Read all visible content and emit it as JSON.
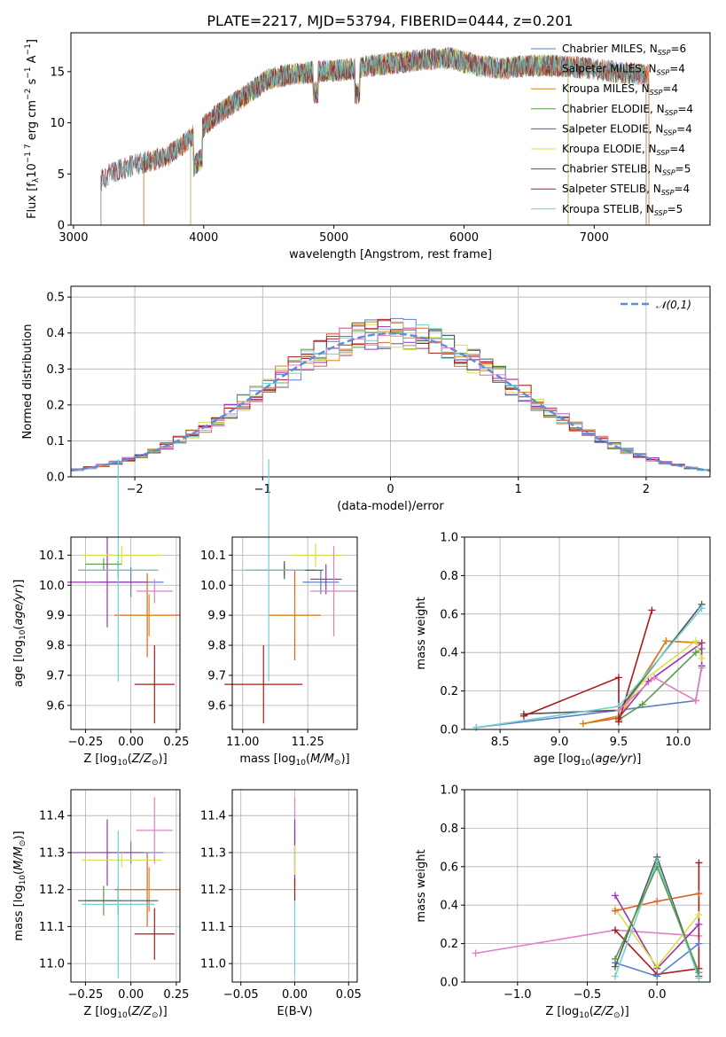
{
  "figure": {
    "title": "PLATE=2217, MJD=53794, FIBERID=0444, z=0.201"
  },
  "colors": {
    "Chabrier MILES": "#5b7fc9",
    "Salpeter MILES": "#e06020",
    "Kroupa MILES": "#d4861a",
    "Chabrier ELODIE": "#5a9a4a",
    "Salpeter ELODIE": "#9b30b0",
    "Kroupa ELODIE": "#d6e04a",
    "Chabrier STELIB": "#555555",
    "Salpeter STELIB": "#aa1a1a",
    "Kroupa STELIB": "#70cfd6",
    "extra": "#e080c0",
    "gaussian": "#5b8fd6"
  },
  "chart_data": [
    {
      "type": "line",
      "xlabel": "wavelength [Angstrom, rest frame]",
      "ylabel": "Flux [fλ10⁻¹⁷ erg cm⁻² s⁻¹ A⁻¹]",
      "xlim": [
        2980,
        7890
      ],
      "ylim": [
        0,
        18.8
      ],
      "xticks": [
        3000,
        4000,
        5000,
        6000,
        7000
      ],
      "yticks": [
        0,
        5,
        10,
        15
      ],
      "legend_position": "right",
      "legend": [
        "Chabrier MILES, N_SSP=6",
        "Salpeter MILES, N_SSP=4",
        "Kroupa MILES, N_SSP=4",
        "Chabrier ELODIE, N_SSP=4",
        "Salpeter ELODIE, N_SSP=4",
        "Kroupa ELODIE, N_SSP=4",
        "Chabrier STELIB, N_SSP=5",
        "Salpeter STELIB, N_SSP=4",
        "Kroupa STELIB, N_SSP=5"
      ],
      "legend_text": [
        {
          "pre": "Chabrier MILES, N",
          "sub": "SSP",
          "post": "=6"
        },
        {
          "pre": "Salpeter MILES, N",
          "sub": "SSP",
          "post": "=4"
        },
        {
          "pre": "Kroupa MILES, N",
          "sub": "SSP",
          "post": "=4"
        },
        {
          "pre": "Chabrier ELODIE, N",
          "sub": "SSP",
          "post": "=4"
        },
        {
          "pre": "Salpeter ELODIE, N",
          "sub": "SSP",
          "post": "=4"
        },
        {
          "pre": "Kroupa ELODIE, N",
          "sub": "SSP",
          "post": "=4"
        },
        {
          "pre": "Chabrier STELIB, N",
          "sub": "SSP",
          "post": "=5"
        },
        {
          "pre": "Salpeter STELIB, N",
          "sub": "SSP",
          "post": "=4"
        },
        {
          "pre": "Kroupa STELIB, N",
          "sub": "SSP",
          "post": "=5"
        }
      ],
      "spectrum_envelope": {
        "x": [
          3210,
          3300,
          3500,
          3700,
          3900,
          4100,
          4300,
          4500,
          4700,
          4900,
          5100,
          5300,
          5500,
          5700,
          5900,
          6100,
          6300,
          6500,
          6700,
          6900,
          7100,
          7300,
          7450
        ],
        "y": [
          4.3,
          5.2,
          6.0,
          6.6,
          8.5,
          10.8,
          12.5,
          14.3,
          14.8,
          15.0,
          15.2,
          15.6,
          15.9,
          16.2,
          16.3,
          15.6,
          15.3,
          15.6,
          15.6,
          15.4,
          15.1,
          14.8,
          14.6
        ]
      },
      "model_edges": {
        "Chabrier MILES": [
          3540,
          7420
        ],
        "Salpeter MILES": [
          3540,
          7420
        ],
        "Kroupa MILES": [
          3540,
          7420
        ],
        "Chabrier ELODIE": [
          3900,
          6800
        ],
        "Salpeter ELODIE": [
          3900,
          6800
        ],
        "Kroupa ELODIE": [
          3900,
          6800
        ],
        "Chabrier STELIB": [
          3210,
          7400
        ],
        "Salpeter STELIB": [
          3210,
          7400
        ],
        "Kroupa STELIB": [
          3210,
          7400
        ]
      }
    },
    {
      "type": "step",
      "xlabel": "(data-model)/error",
      "ylabel": "Normed distribution",
      "xlim": [
        -2.5,
        2.5
      ],
      "ylim": [
        0,
        0.53
      ],
      "xticks": [
        -2,
        -1,
        0,
        1,
        2
      ],
      "yticks": [
        0.0,
        0.1,
        0.2,
        0.3,
        0.4,
        0.5
      ],
      "legend_position": "top-right",
      "legend": [
        "N(0,1)"
      ],
      "bin_width": 0.1,
      "x_start": -2.5,
      "gaussian": {
        "mu": 0,
        "sigma": 1
      }
    },
    {
      "type": "errorbar",
      "xlabel": "Z [log10(Z/Z⊙)]",
      "ylabel": "age [log10(age/yr)]",
      "xlim": [
        -0.33,
        0.27
      ],
      "ylim": [
        9.52,
        10.16
      ],
      "xticks": [
        -0.25,
        0.0,
        0.25
      ],
      "yticks": [
        9.6,
        9.7,
        9.8,
        9.9,
        10.0,
        10.1
      ],
      "points": [
        {
          "model": "Chabrier MILES",
          "x": 0.0,
          "xerr": 0.18,
          "y": 10.01,
          "yerr": 0.05
        },
        {
          "model": "Salpeter MILES",
          "x": 0.09,
          "xerr": 0.18,
          "y": 9.9,
          "yerr": 0.14
        },
        {
          "model": "Kroupa MILES",
          "x": 0.1,
          "xerr": 0.1,
          "y": 9.9,
          "yerr": 0.07
        },
        {
          "model": "Chabrier ELODIE",
          "x": -0.15,
          "xerr": 0.1,
          "y": 10.07,
          "yerr": 0.02
        },
        {
          "model": "Salpeter ELODIE",
          "x": -0.13,
          "xerr": 0.22,
          "y": 10.01,
          "yerr": 0.15
        },
        {
          "model": "Kroupa ELODIE",
          "x": -0.05,
          "xerr": 0.22,
          "y": 10.1,
          "yerr": 0.03
        },
        {
          "model": "Chabrier STELIB",
          "x": -0.07,
          "xerr": 0.22,
          "y": 10.05,
          "yerr": 0.03
        },
        {
          "model": "Salpeter STELIB",
          "x": 0.13,
          "xerr": 0.11,
          "y": 9.67,
          "yerr": 0.13
        },
        {
          "model": "Kroupa STELIB",
          "x": -0.07,
          "xerr": 0.22,
          "y": 10.05,
          "yerr": 0.37
        },
        {
          "model": "extra",
          "x": 0.13,
          "xerr": 0.1,
          "y": 9.98,
          "yerr": 0.04
        }
      ]
    },
    {
      "type": "errorbar",
      "xlabel": "mass [log10(M/M⊙)]",
      "ylabel": "",
      "xlim": [
        10.96,
        11.44
      ],
      "ylim": [
        9.52,
        10.16
      ],
      "xticks": [
        11.0,
        11.25
      ],
      "yticks": [
        9.6,
        9.7,
        9.8,
        9.9,
        10.0,
        10.1
      ],
      "points": [
        {
          "model": "Chabrier MILES",
          "x": 11.3,
          "xerr": 0.07,
          "y": 10.01,
          "yerr": 0.04
        },
        {
          "model": "Salpeter MILES",
          "x": 11.2,
          "xerr": 0.1,
          "y": 9.9,
          "yerr": 0.15
        },
        {
          "model": "Kroupa MILES",
          "x": 11.2,
          "xerr": 0.08,
          "y": 9.9,
          "yerr": 0.07
        },
        {
          "model": "Chabrier ELODIE",
          "x": 11.16,
          "xerr": 0.12,
          "y": 10.05,
          "yerr": 0.02
        },
        {
          "model": "Salpeter ELODIE",
          "x": 11.32,
          "xerr": 0.06,
          "y": 10.02,
          "yerr": 0.05
        },
        {
          "model": "Kroupa ELODIE",
          "x": 11.28,
          "xerr": 0.1,
          "y": 10.1,
          "yerr": 0.04
        },
        {
          "model": "Chabrier STELIB",
          "x": 11.16,
          "xerr": 0.15,
          "y": 10.05,
          "yerr": 0.03
        },
        {
          "model": "Salpeter STELIB",
          "x": 11.08,
          "xerr": 0.15,
          "y": 9.67,
          "yerr": 0.13
        },
        {
          "model": "Kroupa STELIB",
          "x": 11.1,
          "xerr": 0.14,
          "y": 10.05,
          "yerr": 0.37
        },
        {
          "model": "extra",
          "x": 11.35,
          "xerr": 0.09,
          "y": 9.98,
          "yerr": 0.15
        }
      ]
    },
    {
      "type": "line",
      "xlabel": "age [log10(age/yr)]",
      "ylabel": "mass weight",
      "xlim": [
        8.2,
        10.27
      ],
      "ylim": [
        0,
        1.0
      ],
      "xticks": [
        8.5,
        9.0,
        9.5,
        10.0
      ],
      "yticks": [
        0.0,
        0.2,
        0.4,
        0.6,
        0.8,
        1.0
      ],
      "series": [
        {
          "model": "Chabrier MILES",
          "x": [
            8.3,
            9.5,
            10.15,
            10.2
          ],
          "y": [
            0.01,
            0.1,
            0.15,
            0.33
          ]
        },
        {
          "model": "Salpeter MILES",
          "x": [
            9.2,
            9.5,
            9.9,
            10.2
          ],
          "y": [
            0.03,
            0.06,
            0.46,
            0.45
          ]
        },
        {
          "model": "Kroupa MILES",
          "x": [
            9.2,
            9.5,
            9.9,
            10.2
          ],
          "y": [
            0.03,
            0.07,
            0.46,
            0.45
          ]
        },
        {
          "model": "Chabrier ELODIE",
          "x": [
            9.5,
            9.7,
            10.15,
            10.2
          ],
          "y": [
            0.05,
            0.13,
            0.4,
            0.42
          ]
        },
        {
          "model": "Salpeter ELODIE",
          "x": [
            9.5,
            9.75,
            10.2,
            10.2
          ],
          "y": [
            0.06,
            0.25,
            0.45,
            0.33
          ]
        },
        {
          "model": "Kroupa ELODIE",
          "x": [
            9.5,
            9.7,
            10.15,
            10.2
          ],
          "y": [
            0.07,
            0.25,
            0.46,
            0.37
          ]
        },
        {
          "model": "Chabrier STELIB",
          "x": [
            8.7,
            9.5,
            10.2
          ],
          "y": [
            0.08,
            0.1,
            0.65
          ]
        },
        {
          "model": "Salpeter STELIB",
          "x": [
            8.7,
            9.5,
            9.5,
            9.78
          ],
          "y": [
            0.07,
            0.27,
            0.04,
            0.62
          ]
        },
        {
          "model": "Kroupa STELIB",
          "x": [
            8.3,
            9.5,
            10.2
          ],
          "y": [
            0.01,
            0.12,
            0.63
          ]
        },
        {
          "model": "extra",
          "x": [
            9.5,
            9.8,
            10.15,
            10.2
          ],
          "y": [
            0.1,
            0.27,
            0.15,
            0.32
          ]
        }
      ]
    },
    {
      "type": "errorbar",
      "xlabel": "Z [log10(Z/Z⊙)]",
      "ylabel": "mass [log10(M/M⊙)]",
      "xlim": [
        -0.33,
        0.27
      ],
      "ylim": [
        10.95,
        11.47
      ],
      "xticks": [
        -0.25,
        0.0,
        0.25
      ],
      "yticks": [
        11.0,
        11.1,
        11.2,
        11.3,
        11.4
      ],
      "points": [
        {
          "model": "Chabrier MILES",
          "x": 0.0,
          "xerr": 0.18,
          "y": 11.3,
          "yerr": 0.03
        },
        {
          "model": "Salpeter MILES",
          "x": 0.09,
          "xerr": 0.18,
          "y": 11.2,
          "yerr": 0.1
        },
        {
          "model": "Kroupa MILES",
          "x": 0.1,
          "xerr": 0.1,
          "y": 11.2,
          "yerr": 0.06
        },
        {
          "model": "Chabrier ELODIE",
          "x": -0.15,
          "xerr": 0.1,
          "y": 11.17,
          "yerr": 0.04
        },
        {
          "model": "Salpeter ELODIE",
          "x": -0.13,
          "xerr": 0.2,
          "y": 11.3,
          "yerr": 0.09
        },
        {
          "model": "Kroupa ELODIE",
          "x": -0.05,
          "xerr": 0.22,
          "y": 11.28,
          "yerr": 0.02
        },
        {
          "model": "Chabrier STELIB",
          "x": -0.07,
          "xerr": 0.22,
          "y": 11.17,
          "yerr": 0.04
        },
        {
          "model": "Salpeter STELIB",
          "x": 0.13,
          "xerr": 0.11,
          "y": 11.08,
          "yerr": 0.07
        },
        {
          "model": "Kroupa STELIB",
          "x": -0.07,
          "xerr": 0.2,
          "y": 11.16,
          "yerr": 0.2
        },
        {
          "model": "extra",
          "x": 0.13,
          "xerr": 0.1,
          "y": 11.36,
          "yerr": 0.09
        }
      ]
    },
    {
      "type": "errorbar",
      "xlabel": "E(B-V)",
      "ylabel": "",
      "xlim": [
        -0.058,
        0.058
      ],
      "ylim": [
        10.95,
        11.47
      ],
      "xticks": [
        -0.05,
        0.0,
        0.05
      ],
      "yticks": [
        11.0,
        11.1,
        11.2,
        11.3,
        11.4
      ],
      "points": [
        {
          "model": "Kroupa STELIB",
          "x": 0.0,
          "xerr": 0.0,
          "y": 11.17,
          "yerr": 0.2
        },
        {
          "model": "extra",
          "x": 0.0,
          "xerr": 0.0,
          "y": 11.36,
          "yerr": 0.09
        },
        {
          "model": "Salpeter ELODIE",
          "x": 0.0,
          "xerr": 0.0,
          "y": 11.3,
          "yerr": 0.09
        },
        {
          "model": "Kroupa ELODIE",
          "x": 0.0,
          "xerr": 0.0,
          "y": 11.28,
          "yerr": 0.04
        },
        {
          "model": "Salpeter STELIB",
          "x": 0.0,
          "xerr": 0.0,
          "y": 11.2,
          "yerr": 0.03
        }
      ]
    },
    {
      "type": "line",
      "xlabel": "Z [log10(Z/Z⊙)]",
      "ylabel": "mass weight",
      "xlim": [
        -1.38,
        0.38
      ],
      "ylim": [
        0,
        1.0
      ],
      "xticks": [
        -1.0,
        -0.5,
        0.0
      ],
      "yticks": [
        0.0,
        0.2,
        0.4,
        0.6,
        0.8,
        1.0
      ],
      "series": [
        {
          "model": "extra",
          "x": [
            -1.3,
            -0.3,
            0.3
          ],
          "y": [
            0.15,
            0.27,
            0.24
          ]
        },
        {
          "model": "Salpeter STELIB",
          "x": [
            -0.3,
            0.0,
            0.3,
            0.3
          ],
          "y": [
            0.27,
            0.04,
            0.07,
            0.62
          ]
        },
        {
          "model": "Salpeter ELODIE",
          "x": [
            -0.3,
            0.0,
            0.3
          ],
          "y": [
            0.45,
            0.07,
            0.3
          ]
        },
        {
          "model": "Kroupa ELODIE",
          "x": [
            -0.3,
            0.0,
            0.3
          ],
          "y": [
            0.38,
            0.08,
            0.35
          ]
        },
        {
          "model": "Salpeter MILES",
          "x": [
            -0.3,
            0.0,
            0.3
          ],
          "y": [
            0.37,
            0.42,
            0.46
          ]
        },
        {
          "model": "Chabrier MILES",
          "x": [
            -0.3,
            0.0,
            0.3
          ],
          "y": [
            0.1,
            0.03,
            0.2
          ]
        },
        {
          "model": "Chabrier STELIB",
          "x": [
            -0.3,
            0.0,
            0.3
          ],
          "y": [
            0.08,
            0.65,
            0.03
          ]
        },
        {
          "model": "Kroupa STELIB",
          "x": [
            -0.3,
            0.0,
            0.3
          ],
          "y": [
            0.03,
            0.63,
            0.02
          ]
        },
        {
          "model": "Chabrier ELODIE",
          "x": [
            -0.3,
            0.0,
            0.3
          ],
          "y": [
            0.12,
            0.6,
            0.05
          ]
        }
      ]
    }
  ]
}
